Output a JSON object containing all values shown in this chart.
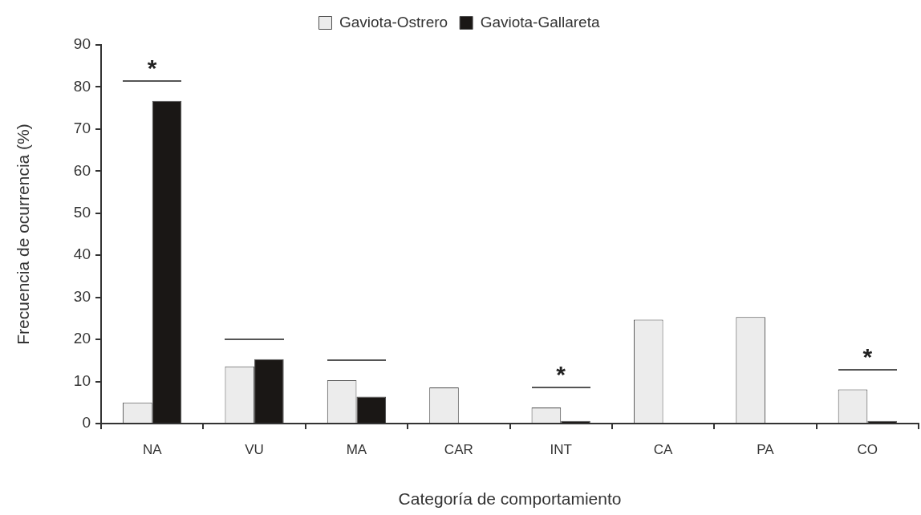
{
  "chart_data": {
    "type": "bar",
    "xlabel": "Categoría de comportamiento",
    "ylabel": "Frecuencia de ocurrencia (%)",
    "categories": [
      "NA",
      "VU",
      "MA",
      "CAR",
      "INT",
      "CA",
      "PA",
      "CO"
    ],
    "series": [
      {
        "name": "Gaviota-Ostrero",
        "color": "#ececec",
        "values": [
          5.0,
          13.6,
          10.3,
          8.6,
          3.8,
          24.7,
          25.3,
          8.1
        ]
      },
      {
        "name": "Gaviota-Gallareta",
        "color": "#1a1715",
        "values": [
          76.7,
          15.3,
          6.4,
          0,
          0.6,
          0,
          0,
          0.6
        ]
      }
    ],
    "ylim": [
      0,
      90
    ],
    "yticks": [
      0,
      10,
      20,
      30,
      40,
      50,
      60,
      70,
      80,
      90
    ],
    "grid": false,
    "legend": "top",
    "annotations": [
      {
        "text": "*",
        "x": "NA",
        "y": 76.7
      },
      {
        "text": "*",
        "x": "INT",
        "y": 3.8
      },
      {
        "text": "*",
        "x": "CO",
        "y": 8.1
      }
    ]
  }
}
